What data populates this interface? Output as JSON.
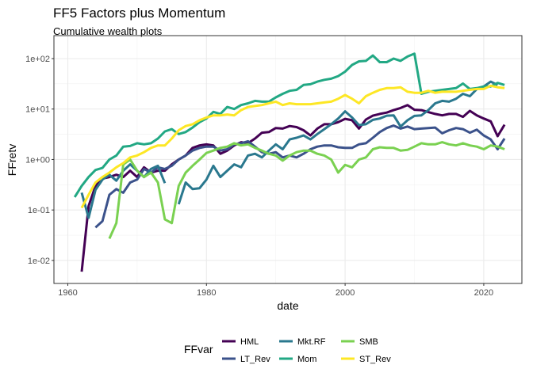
{
  "chart_data": {
    "type": "line",
    "title": "FF5 Factors plus Momentum",
    "subtitle": "Cumulative wealth plots",
    "xlabel": "date",
    "ylabel": "FFretv",
    "xlim": [
      1958,
      2025.5
    ],
    "ylim": [
      0.0035,
      285
    ],
    "y_scale": "log10",
    "x_ticks": [
      1960,
      1980,
      2000,
      2020
    ],
    "x_tick_labels": [
      "1960",
      "1980",
      "2000",
      "2020"
    ],
    "y_ticks": [
      0.01,
      0.1,
      1,
      10,
      100
    ],
    "y_tick_labels": [
      "1e-02",
      "1e-01",
      "1e+00",
      "1e+01",
      "1e+02"
    ],
    "grid": true,
    "legend": {
      "title": "FFvar",
      "position": "bottom"
    },
    "series": [
      {
        "name": "HML",
        "color": "#440154",
        "start_year": 1962,
        "values": [
          0.006,
          0.12,
          0.3,
          0.42,
          0.45,
          0.5,
          0.45,
          0.6,
          0.45,
          0.7,
          0.55,
          0.6,
          0.6,
          0.8,
          1.0,
          1.2,
          1.7,
          1.9,
          2.0,
          1.9,
          1.3,
          1.5,
          1.9,
          2.2,
          2.1,
          2.6,
          3.4,
          3.5,
          4.2,
          4.1,
          4.6,
          4.4,
          3.8,
          3.0,
          4.1,
          5.0,
          5.0,
          5.5,
          6.4,
          6.0,
          4.1,
          6.2,
          7.4,
          8.0,
          8.5,
          9.5,
          10.5,
          12,
          9.7,
          9.5,
          8.7,
          8.0,
          7.5,
          8.0,
          8.0,
          7.0,
          9.2,
          7.5,
          6.5,
          5.7,
          2.9,
          4.9
        ]
      },
      {
        "name": "LT_Rev",
        "color": "#3b528b",
        "start_year": 1964,
        "values": [
          0.045,
          0.06,
          0.2,
          0.26,
          0.22,
          0.35,
          0.4,
          0.65,
          0.55,
          0.7,
          0.65,
          0.75,
          1.0,
          1.2,
          1.5,
          1.7,
          1.8,
          1.8,
          1.5,
          1.6,
          2.0,
          2.1,
          2.3,
          1.8,
          1.4,
          1.3,
          1.4,
          1.1,
          1.2,
          1.1,
          1.3,
          1.6,
          1.8,
          1.9,
          1.9,
          1.75,
          1.7,
          1.7,
          2.0,
          2.1,
          2.7,
          3.5,
          4.2,
          4.7,
          4.1,
          4.5,
          4.0,
          4.1,
          4.2,
          4.3,
          3.3,
          3.8,
          4.2,
          4.0,
          3.4,
          3.9,
          3.0,
          2.5,
          1.6,
          2.6
        ]
      },
      {
        "name": "Mkt.RF",
        "color": "#2a788e",
        "start_year": 1962,
        "values": [
          0.22,
          0.07,
          0.25,
          0.4,
          0.5,
          0.38,
          0.6,
          0.8,
          0.6,
          0.45,
          0.65,
          0.75,
          0.34,
          null,
          0.13,
          0.35,
          0.26,
          0.27,
          0.4,
          0.75,
          0.45,
          0.6,
          0.8,
          0.7,
          1.2,
          1.3,
          1.1,
          1.5,
          2.0,
          1.6,
          2.5,
          2.7,
          3.0,
          2.5,
          3.2,
          4.0,
          5.0,
          6.5,
          9.0,
          6.8,
          4.8,
          5.0,
          6.1,
          6.5,
          7.4,
          7.5,
          4.5,
          6.0,
          7.3,
          7.5,
          9.5,
          13,
          14.5,
          14,
          16,
          20,
          18,
          25,
          28,
          35,
          30
        ]
      },
      {
        "name": "Mom",
        "color": "#22a884",
        "start_year": 1961,
        "values": [
          0.18,
          0.3,
          0.45,
          0.62,
          0.68,
          1.0,
          1.2,
          1.8,
          1.85,
          2.1,
          2.0,
          2.1,
          2.6,
          3.6,
          4.0,
          3.2,
          3.5,
          4.3,
          5.5,
          6.5,
          8.8,
          8.0,
          11,
          10,
          12,
          13,
          14.5,
          14,
          14,
          17,
          20,
          23,
          24,
          30,
          31,
          35,
          38,
          40,
          45,
          55,
          75,
          88,
          90,
          115,
          85,
          85,
          100,
          90,
          110,
          125,
          20,
          22,
          23,
          24,
          25,
          26,
          32,
          25,
          26,
          28,
          28,
          33,
          30
        ]
      },
      {
        "name": "SMB",
        "color": "#7ad151",
        "start_year": 1966,
        "values": [
          0.027,
          0.055,
          0.8,
          1.0,
          0.6,
          0.45,
          0.55,
          0.35,
          0.065,
          0.055,
          0.3,
          0.55,
          0.75,
          1.0,
          1.35,
          1.5,
          1.7,
          1.8,
          2.1,
          1.9,
          2.0,
          1.7,
          1.5,
          1.3,
          1.2,
          0.95,
          1.2,
          1.4,
          1.5,
          1.5,
          1.3,
          1.2,
          1.0,
          0.55,
          0.78,
          0.7,
          1.0,
          1.1,
          1.6,
          1.75,
          1.7,
          1.7,
          1.5,
          1.55,
          1.8,
          2.1,
          2.0,
          2.0,
          2.2,
          2.0,
          1.9,
          2.1,
          1.9,
          1.8,
          1.6,
          1.9,
          1.8,
          1.6
        ]
      },
      {
        "name": "ST_Rev",
        "color": "#fde725",
        "start_year": 1962,
        "values": [
          0.11,
          0.2,
          0.35,
          0.45,
          0.55,
          0.7,
          0.85,
          1.1,
          1.2,
          1.4,
          1.7,
          1.9,
          1.9,
          2.6,
          3.8,
          4.6,
          5.0,
          6.0,
          6.8,
          7.5,
          7.5,
          7.8,
          7.5,
          9.5,
          11,
          11.5,
          12,
          13,
          14,
          12,
          13,
          12.5,
          12.5,
          12.5,
          13,
          13.5,
          14,
          16,
          19,
          16,
          13,
          18,
          21,
          24,
          26,
          26,
          27,
          22,
          21,
          21,
          23,
          21,
          22,
          22,
          22,
          23,
          24,
          25,
          25,
          29,
          27,
          26
        ]
      }
    ]
  }
}
